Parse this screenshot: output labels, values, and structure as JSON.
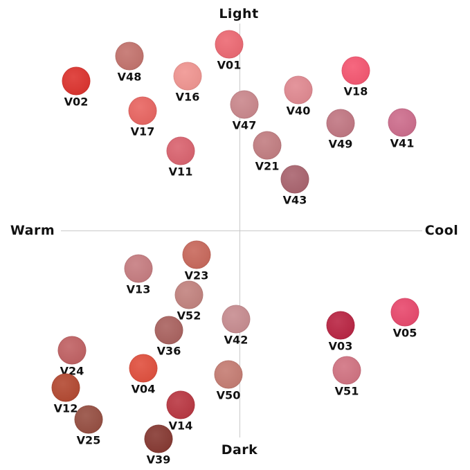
{
  "axes": {
    "top": "Light",
    "bottom": "Dark",
    "left": "Warm",
    "right": "Cool"
  },
  "shades": [
    {
      "code": "V01",
      "color": "#ec6670"
    },
    {
      "code": "V48",
      "color": "#c2706a"
    },
    {
      "code": "V02",
      "color": "#dc2f2a"
    },
    {
      "code": "V16",
      "color": "#f0938f"
    },
    {
      "code": "V17",
      "color": "#e8625e"
    },
    {
      "code": "V11",
      "color": "#d9606c"
    },
    {
      "code": "V47",
      "color": "#c9858a"
    },
    {
      "code": "V40",
      "color": "#e0878f"
    },
    {
      "code": "V18",
      "color": "#f5536e"
    },
    {
      "code": "V21",
      "color": "#c17b7f"
    },
    {
      "code": "V49",
      "color": "#c07480"
    },
    {
      "code": "V41",
      "color": "#cc6a8a"
    },
    {
      "code": "V43",
      "color": "#a8616c"
    },
    {
      "code": "V23",
      "color": "#c76558"
    },
    {
      "code": "V13",
      "color": "#c57a7e"
    },
    {
      "code": "V52",
      "color": "#c1807c"
    },
    {
      "code": "V42",
      "color": "#c68a8e"
    },
    {
      "code": "V36",
      "color": "#a85f5c"
    },
    {
      "code": "V03",
      "color": "#b8203f"
    },
    {
      "code": "V05",
      "color": "#e8456a"
    },
    {
      "code": "V24",
      "color": "#bf5e60"
    },
    {
      "code": "V04",
      "color": "#e04c3a"
    },
    {
      "code": "V51",
      "color": "#d0707f"
    },
    {
      "code": "V12",
      "color": "#b2452d"
    },
    {
      "code": "V50",
      "color": "#c47a70"
    },
    {
      "code": "V14",
      "color": "#b8333e"
    },
    {
      "code": "V25",
      "color": "#944b3e"
    },
    {
      "code": "V39",
      "color": "#84352e"
    }
  ]
}
